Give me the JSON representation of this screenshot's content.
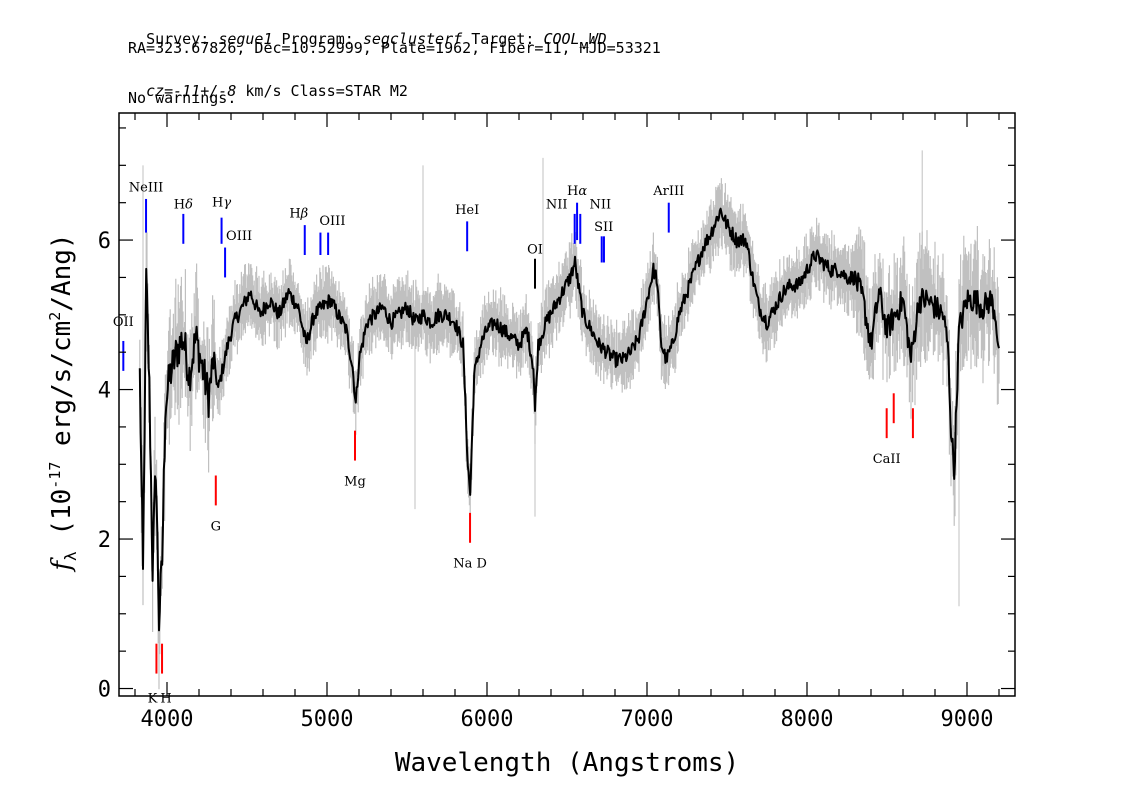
{
  "header": {
    "survey_label": "Survey:",
    "survey": "segue1",
    "program_label": "Program:",
    "program": "segclusterf",
    "target_label": "Target:",
    "target": "COOL_WD",
    "line2": "RA=323.67826, Dec=10.52999, Plate=1962, Fiber=11, MJD=53321",
    "cz_label": "cz=",
    "cz_value": "-11+/-8",
    "cz_rest": " km/s Class=STAR M2",
    "line4": "No warnings."
  },
  "chart_data": {
    "type": "line",
    "xlabel": "Wavelength (Angstroms)",
    "ylabel": "f_λ (10^-17 erg/s/cm^2/Ang)",
    "xlim": [
      3700,
      9300
    ],
    "ylim": [
      -0.1,
      7.7
    ],
    "xticks": [
      4000,
      5000,
      6000,
      7000,
      8000,
      9000
    ],
    "xtick_labels": [
      "4000",
      "5000",
      "6000",
      "7000",
      "8000",
      "9000"
    ],
    "yticks": [
      0,
      2,
      4,
      6
    ],
    "ytick_labels": [
      "0",
      "2",
      "4",
      "6"
    ],
    "series": [
      {
        "role": "flux",
        "color": "#000000",
        "points": [
          [
            3830,
            4.2
          ],
          [
            3850,
            1.5
          ],
          [
            3870,
            5.5
          ],
          [
            3890,
            4.0
          ],
          [
            3910,
            1.6
          ],
          [
            3930,
            3.0
          ],
          [
            3950,
            0.9
          ],
          [
            3970,
            1.7
          ],
          [
            3990,
            3.8
          ],
          [
            4020,
            4.2
          ],
          [
            4060,
            4.5
          ],
          [
            4100,
            4.7
          ],
          [
            4140,
            4.2
          ],
          [
            4180,
            4.7
          ],
          [
            4220,
            4.3
          ],
          [
            4260,
            3.9
          ],
          [
            4290,
            4.4
          ],
          [
            4320,
            4.0
          ],
          [
            4350,
            4.3
          ],
          [
            4380,
            4.6
          ],
          [
            4420,
            4.9
          ],
          [
            4470,
            5.1
          ],
          [
            4520,
            5.3
          ],
          [
            4580,
            5.0
          ],
          [
            4640,
            5.2
          ],
          [
            4700,
            5.0
          ],
          [
            4760,
            5.3
          ],
          [
            4820,
            5.1
          ],
          [
            4870,
            4.6
          ],
          [
            4920,
            5.0
          ],
          [
            4970,
            5.1
          ],
          [
            5020,
            5.2
          ],
          [
            5070,
            5.0
          ],
          [
            5120,
            4.8
          ],
          [
            5160,
            4.3
          ],
          [
            5180,
            3.8
          ],
          [
            5200,
            4.4
          ],
          [
            5250,
            4.9
          ],
          [
            5300,
            5.0
          ],
          [
            5350,
            5.1
          ],
          [
            5400,
            4.9
          ],
          [
            5450,
            5.0
          ],
          [
            5500,
            5.1
          ],
          [
            5550,
            4.9
          ],
          [
            5600,
            5.0
          ],
          [
            5650,
            4.9
          ],
          [
            5700,
            5.0
          ],
          [
            5750,
            5.0
          ],
          [
            5800,
            4.9
          ],
          [
            5850,
            4.6
          ],
          [
            5880,
            3.0
          ],
          [
            5895,
            2.6
          ],
          [
            5920,
            4.2
          ],
          [
            5960,
            4.6
          ],
          [
            6000,
            4.8
          ],
          [
            6050,
            4.9
          ],
          [
            6100,
            4.8
          ],
          [
            6150,
            4.7
          ],
          [
            6200,
            4.6
          ],
          [
            6250,
            4.8
          ],
          [
            6290,
            4.3
          ],
          [
            6300,
            3.7
          ],
          [
            6320,
            4.6
          ],
          [
            6370,
            4.9
          ],
          [
            6420,
            5.1
          ],
          [
            6470,
            5.3
          ],
          [
            6520,
            5.5
          ],
          [
            6550,
            5.7
          ],
          [
            6570,
            5.4
          ],
          [
            6600,
            5.0
          ],
          [
            6650,
            4.8
          ],
          [
            6700,
            4.6
          ],
          [
            6750,
            4.5
          ],
          [
            6800,
            4.4
          ],
          [
            6850,
            4.4
          ],
          [
            6900,
            4.5
          ],
          [
            6950,
            4.7
          ],
          [
            7000,
            5.2
          ],
          [
            7040,
            5.6
          ],
          [
            7060,
            5.5
          ],
          [
            7090,
            4.6
          ],
          [
            7120,
            4.4
          ],
          [
            7160,
            4.6
          ],
          [
            7200,
            5.0
          ],
          [
            7250,
            5.3
          ],
          [
            7300,
            5.6
          ],
          [
            7350,
            5.9
          ],
          [
            7400,
            6.1
          ],
          [
            7460,
            6.4
          ],
          [
            7500,
            6.2
          ],
          [
            7560,
            6.0
          ],
          [
            7620,
            6.0
          ],
          [
            7660,
            5.5
          ],
          [
            7700,
            5.1
          ],
          [
            7750,
            4.9
          ],
          [
            7800,
            5.1
          ],
          [
            7850,
            5.3
          ],
          [
            7900,
            5.4
          ],
          [
            7950,
            5.4
          ],
          [
            8000,
            5.6
          ],
          [
            8050,
            5.8
          ],
          [
            8100,
            5.7
          ],
          [
            8150,
            5.6
          ],
          [
            8200,
            5.6
          ],
          [
            8250,
            5.5
          ],
          [
            8300,
            5.5
          ],
          [
            8350,
            5.2
          ],
          [
            8400,
            4.6
          ],
          [
            8450,
            5.3
          ],
          [
            8500,
            4.8
          ],
          [
            8550,
            5.0
          ],
          [
            8600,
            5.2
          ],
          [
            8650,
            4.4
          ],
          [
            8700,
            5.2
          ],
          [
            8750,
            5.2
          ],
          [
            8800,
            5.1
          ],
          [
            8850,
            5.0
          ],
          [
            8880,
            4.6
          ],
          [
            8900,
            3.5
          ],
          [
            8920,
            2.9
          ],
          [
            8950,
            4.8
          ],
          [
            9000,
            5.2
          ],
          [
            9050,
            5.2
          ],
          [
            9100,
            5.1
          ],
          [
            9150,
            5.2
          ],
          [
            9180,
            5.0
          ],
          [
            9200,
            4.4
          ]
        ]
      }
    ],
    "line_markers": [
      {
        "label": "OII",
        "x": 3727,
        "y0": 4.25,
        "y1": 4.65,
        "color": "#0000ff",
        "label_y": 4.85,
        "label_dx": 0
      },
      {
        "label": "NeIII",
        "x": 3869,
        "y0": 6.1,
        "y1": 6.55,
        "color": "#0000ff",
        "label_y": 6.65,
        "label_dx": 0
      },
      {
        "label": "Hδ",
        "x": 4102,
        "y0": 5.95,
        "y1": 6.35,
        "color": "#0000ff",
        "label_y": 6.42,
        "label_dx": 0
      },
      {
        "label": "Hγ",
        "x": 4341,
        "y0": 5.95,
        "y1": 6.3,
        "color": "#0000ff",
        "label_y": 6.45,
        "label_dx": 0
      },
      {
        "label": "OIII",
        "x": 4363,
        "y0": 5.5,
        "y1": 5.9,
        "color": "#0000ff",
        "label_y": 6.0,
        "label_dx": 14
      },
      {
        "label": "Hβ",
        "x": 4861,
        "y0": 5.8,
        "y1": 6.2,
        "color": "#0000ff",
        "label_y": 6.3,
        "label_dx": -6
      },
      {
        "label": "OIII",
        "x": 4959,
        "y0": 5.8,
        "y1": 6.1,
        "color": "#0000ff",
        "label_y": 6.2,
        "label_dx": 12
      },
      {
        "label": "OIII-2",
        "x": 5007,
        "y0": 5.8,
        "y1": 6.1,
        "color": "#0000ff",
        "label_y": null,
        "label_dx": 0
      },
      {
        "label": "HeI",
        "x": 5876,
        "y0": 5.85,
        "y1": 6.25,
        "color": "#0000ff",
        "label_y": 6.35,
        "label_dx": 0
      },
      {
        "label": "OI",
        "x": 6300,
        "y0": 5.35,
        "y1": 5.75,
        "color": "#000000",
        "label_y": 5.82,
        "label_dx": 0
      },
      {
        "label": "NII",
        "x": 6548,
        "y0": 5.95,
        "y1": 6.35,
        "color": "#0000ff",
        "label_y": 6.42,
        "label_dx": -18
      },
      {
        "label": "Hα",
        "x": 6563,
        "y0": 6.0,
        "y1": 6.5,
        "color": "#0000ff",
        "label_y": 6.6,
        "label_dx": 0
      },
      {
        "label": "NII",
        "x": 6583,
        "y0": 5.95,
        "y1": 6.35,
        "color": "#0000ff",
        "label_y": 6.42,
        "label_dx": 20
      },
      {
        "label": "SII",
        "x": 6717,
        "y0": 5.7,
        "y1": 6.05,
        "color": "#0000ff",
        "label_y": 6.12,
        "label_dx": 2
      },
      {
        "label": "SII-2",
        "x": 6731,
        "y0": 5.7,
        "y1": 6.05,
        "color": "#0000ff",
        "label_y": null,
        "label_dx": 0
      },
      {
        "label": "ArIII",
        "x": 7136,
        "y0": 6.1,
        "y1": 6.5,
        "color": "#0000ff",
        "label_y": 6.6,
        "label_dx": 0
      },
      {
        "label": "K",
        "x": 3934,
        "y0": 0.2,
        "y1": 0.6,
        "color": "#ff0000",
        "label_y": -0.05,
        "label_dx": -4,
        "label_below": true
      },
      {
        "label": "H",
        "x": 3969,
        "y0": 0.2,
        "y1": 0.6,
        "color": "#ff0000",
        "label_y": -0.05,
        "label_dx": 4,
        "label_below": true
      },
      {
        "label": "G",
        "x": 4305,
        "y0": 2.45,
        "y1": 2.85,
        "color": "#ff0000",
        "label_y": 2.25,
        "label_dx": 0,
        "label_below": true
      },
      {
        "label": "Mg",
        "x": 5175,
        "y0": 3.05,
        "y1": 3.45,
        "color": "#ff0000",
        "label_y": 2.85,
        "label_dx": 0,
        "label_below": true
      },
      {
        "label": "Na D",
        "x": 5894,
        "y0": 1.95,
        "y1": 2.35,
        "color": "#ff0000",
        "label_y": 1.75,
        "label_dx": 0,
        "label_below": true
      },
      {
        "label": "CaII",
        "x": 8498,
        "y0": 3.35,
        "y1": 3.75,
        "color": "#ff0000",
        "label_y": 3.15,
        "label_dx": 0,
        "label_below": true
      },
      {
        "label": "CaII-2",
        "x": 8542,
        "y0": 3.55,
        "y1": 3.95,
        "color": "#ff0000",
        "label_y": null,
        "label_dx": 0
      },
      {
        "label": "CaII-3",
        "x": 8662,
        "y0": 3.35,
        "y1": 3.75,
        "color": "#ff0000",
        "label_y": null,
        "label_dx": 0
      }
    ],
    "colors": {
      "noise": "#c0c0c0",
      "flux": "#000000",
      "emission": "#0000ff",
      "absorption": "#ff0000"
    }
  }
}
